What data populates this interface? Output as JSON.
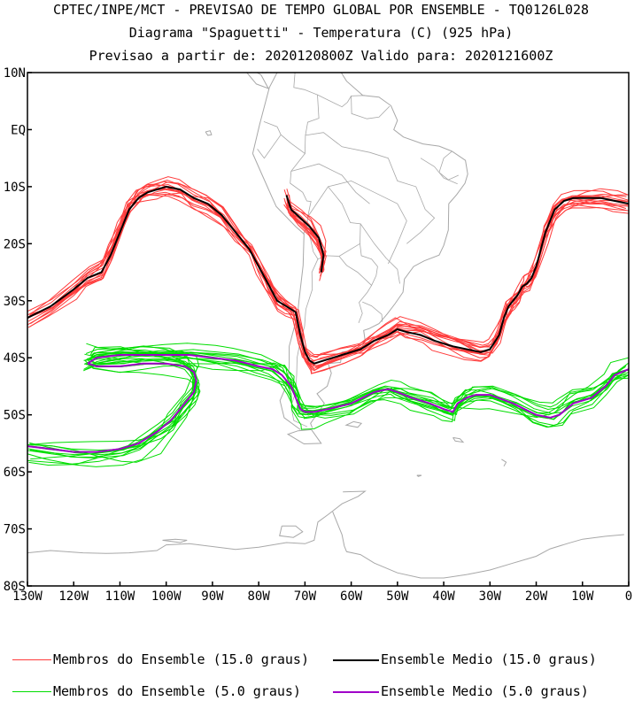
{
  "header": {
    "line1": "CPTEC/INPE/MCT - PREVISAO DE TEMPO GLOBAL POR ENSEMBLE - TQ0126L028",
    "line2": "Diagrama \"Spaguetti\" - Temperatura (C) (925 hPa)",
    "line3": "Previsao a partir de: 2020120800Z  Valido para: 2020121600Z"
  },
  "colors": {
    "members_15": "#ff3b3b",
    "mean_15": "#000000",
    "members_5": "#00dd00",
    "mean_5": "#a000c8",
    "map": "#a8a8a8"
  },
  "legend": {
    "items": [
      {
        "label": "Membros do Ensemble (15.0 graus)",
        "color": "#ff3b3b",
        "width": 1
      },
      {
        "label": "Ensemble Medio (15.0 graus)",
        "color": "#000000",
        "width": 2
      },
      {
        "label": "Membros do Ensemble (5.0 graus)",
        "color": "#00dd00",
        "width": 1
      },
      {
        "label": "Ensemble Medio (5.0 graus)",
        "color": "#a000c8",
        "width": 2
      }
    ]
  },
  "chart_data": {
    "type": "line",
    "xlim": [
      -130,
      0
    ],
    "ylim": [
      -80,
      10
    ],
    "x_ticks": [
      {
        "value": -130,
        "label": "130W"
      },
      {
        "value": -120,
        "label": "120W"
      },
      {
        "value": -110,
        "label": "110W"
      },
      {
        "value": -100,
        "label": "100W"
      },
      {
        "value": -90,
        "label": "90W"
      },
      {
        "value": -80,
        "label": "80W"
      },
      {
        "value": -70,
        "label": "70W"
      },
      {
        "value": -60,
        "label": "60W"
      },
      {
        "value": -50,
        "label": "50W"
      },
      {
        "value": -40,
        "label": "40W"
      },
      {
        "value": -30,
        "label": "30W"
      },
      {
        "value": -20,
        "label": "20W"
      },
      {
        "value": -10,
        "label": "10W"
      },
      {
        "value": 0,
        "label": "0"
      }
    ],
    "y_ticks": [
      {
        "value": 10,
        "label": "10N"
      },
      {
        "value": 0,
        "label": "EQ"
      },
      {
        "value": -10,
        "label": "10S"
      },
      {
        "value": -20,
        "label": "20S"
      },
      {
        "value": -30,
        "label": "30S"
      },
      {
        "value": -40,
        "label": "40S"
      },
      {
        "value": -50,
        "label": "50S"
      },
      {
        "value": -60,
        "label": "60S"
      },
      {
        "value": -70,
        "label": "70S"
      },
      {
        "value": -80,
        "label": "80S"
      }
    ],
    "series": [
      {
        "name": "Ensemble Medio (15.0 graus)",
        "group": "mean_15",
        "x": [
          -130,
          -125,
          -120,
          -117,
          -114,
          -112,
          -110,
          -108,
          -106,
          -104,
          -102,
          -100,
          -97,
          -94,
          -91,
          -88,
          -85,
          -82,
          -80,
          -78,
          -76,
          -74,
          -72,
          -71,
          -70,
          -69,
          -68,
          -66,
          -62,
          -58,
          -55,
          -52,
          -50,
          -48,
          -45,
          -42,
          -38,
          -35,
          -32,
          -30,
          -28,
          -27,
          -26,
          -25,
          -24,
          -23,
          -22,
          -21,
          -20,
          -18,
          -16,
          -14,
          -12,
          -9,
          -6,
          -3,
          0
        ],
        "y": [
          -33,
          -31,
          -28,
          -26,
          -25,
          -22,
          -18,
          -14,
          -12,
          -11,
          -10.5,
          -10,
          -10.5,
          -12,
          -13,
          -15,
          -18,
          -21,
          -24,
          -27,
          -30,
          -31,
          -32,
          -36,
          -39,
          -40.5,
          -41,
          -40.5,
          -39.5,
          -38.5,
          -37,
          -36,
          -35,
          -35.5,
          -36,
          -37,
          -38,
          -38.5,
          -39,
          -38.5,
          -36,
          -33,
          -31,
          -30,
          -29,
          -27.5,
          -27,
          -26,
          -24,
          -18,
          -14,
          -12.5,
          -12,
          -12,
          -12,
          -12.5,
          -13
        ]
      },
      {
        "name": "Ensemble Medio (15.0 graus)",
        "group": "mean_15",
        "x": [
          -74,
          -73,
          -71,
          -69,
          -67,
          -66,
          -66.5
        ],
        "y": [
          -11.5,
          -14,
          -15.5,
          -17,
          -19,
          -22,
          -25
        ]
      },
      {
        "name": "Ensemble Medio (5.0 graus)",
        "group": "mean_5",
        "x": [
          -117,
          -115,
          -110,
          -105,
          -100,
          -95,
          -90,
          -85,
          -80,
          -77,
          -75,
          -73,
          -72,
          -71,
          -70,
          -68,
          -65,
          -60,
          -55,
          -52,
          -50,
          -47,
          -43,
          -40,
          -38,
          -37,
          -35,
          -33,
          -30,
          -25,
          -20,
          -17,
          -15,
          -12,
          -8,
          -5,
          -3,
          0
        ],
        "y": [
          -41,
          -40,
          -39.5,
          -39.5,
          -39.5,
          -39.5,
          -40,
          -40.5,
          -41.5,
          -42,
          -43,
          -45,
          -47,
          -49,
          -49.5,
          -49.5,
          -49,
          -48,
          -46,
          -45.5,
          -46,
          -47,
          -48,
          -49,
          -49.5,
          -48,
          -47,
          -46.5,
          -46.5,
          -48,
          -50,
          -50.5,
          -50,
          -48,
          -47,
          -45,
          -43,
          -42
        ]
      },
      {
        "name": "Ensemble Medio (5.0 graus)",
        "group": "mean_5",
        "x": [
          -130,
          -125,
          -120,
          -115,
          -110,
          -106,
          -102,
          -99,
          -96,
          -94,
          -93.5,
          -94,
          -96,
          -100,
          -105,
          -110,
          -115,
          -117
        ],
        "y": [
          -55.5,
          -56,
          -56.5,
          -56.5,
          -56,
          -55,
          -53,
          -51,
          -48,
          -46,
          -44,
          -42.5,
          -41.5,
          -41,
          -41,
          -41.5,
          -41.5,
          -41
        ]
      }
    ]
  },
  "map": {
    "lines": [
      "-81.3,-4.2 -79.8,0.9 -77.7,7.4 -75.5,10.8 -71.5,12.4 -67.0,10.7 -62.7,10.7 -61.0,8.5 -57.5,6.0 -54.0,5.7 -51.4,4.2 -50.0,1.6 -50.8,0.0 -48.7,-1.3 -44.5,-2.5 -41.0,-2.9 -38.2,-3.8 -35.3,-5.4 -34.8,-7.8 -35.4,-9.4 -37.2,-11.4 -38.9,-13.0 -39.0,-17.6 -40.0,-20.3 -41.0,-22.0 -44.2,-23.0 -46.5,-24.0 -48.5,-26.2 -48.8,-28.5 -50.5,-30.5 -52.2,-32.3 -54.0,-34.0 -56.2,-34.9 -57.3,-35.2 -57.0,-37.0 -57.9,-38.5 -62.0,-39.0 -62.3,-40.8 -65.0,-41.0 -64.3,-42.7 -65.2,-45.0 -67.4,-46.3 -65.8,-48.0 -68.8,-51.5 -68.4,-52.3",
      "-71.0,-52.6 -74.5,-50.5 -75.4,-47.5 -73.8,-44.5 -73.4,-41.5 -73.4,-38.0 -71.6,-32.5 -71.3,-30.0 -70.4,-23.8 -70.2,-18.3 -72.0,-17.0 -76.2,-13.5 -77.1,-11.9 -79.6,-7.3 -81.3,-4.2",
      "-68.6,-52.6 -66.5,-55.0 -70.2,-55.1 -73.7,-53.4 -71.5,-52.8 -68.6,-52.6",
      "-59.5,-51.2 -61.1,-51.8 -58.6,-52.2 -57.8,-51.5 -59.5,-51.2",
      "-92.0,18.5 -87.5,21.5 -84.0,15.8 -83.5,10.9 -80.5,8.0 -77.9,7.2 -79.5,9.6 -82.5,11.0 -86.0,13.2 -87.8,13.2 -90.5,13.9 -92.5,14.7 -95.0,16.0 -96.5,15.6",
      "-84.9,21.9 -81.2,23.1 -77.2,21.7 -74.1,20.2 -77.9,19.9 -80.0,21.8 -84.9,21.9",
      "-61.8,-63.5 -57.0,-63.4 -58.5,-64.3 -62.0,-65.6 -65.0,-67.5 -67.2,-68.8 -68.0,-72.0 -70.0,-72.6 -74.0,-72.4 -80.0,-73.2 -85.0,-73.6 -95.0,-72.6 -100.0,-72.8 -102.0,-73.8 -108.0,-74.2 -113.0,-74.3 -118.0,-74.2 -125.0,-73.8 -130.0,-74.2",
      "-35.0,-78.0 -40.0,-78.6 -45.0,-78.6 -50.0,-77.7 -55.0,-76.0 -58.0,-74.5 -61.0,-74.0 -61.5,-73.0 -62.0,-71.0 -63.0,-69.0 -64.0,-67.0",
      "-1.0,-71.0 -5.0,-71.3 -10.0,-71.8 -13.0,-72.5 -17.0,-73.5 -20.0,-74.8 -25.0,-76.0 -30.0,-77.2 -35.0,-78.0",
      "-38.0,-54.0 -36.5,-54.2 -35.8,-54.8 -37.5,-54.6 -38.0,-54.0",
      "-45.8,-60.6 -44.8,-60.6 -45.5,-60.8 -45.8,-60.6",
      "-27.5,-57.8 -26.5,-58.3 -27.0,-59.0",
      "-91.5,-0.4 -90.5,-0.2 -90.2,-0.9 -91.0,-1.0 -91.5,-0.4",
      "-100.8,-72.0 -98.0,-71.8 -95.5,-72.0 -97.0,-72.4 -100.8,-72.0",
      "-75.0,-69.5 -72.0,-69.5 -70.5,-70.5 -72.5,-71.5 -75.5,-71.2 -75.0,-69.5"
    ],
    "borders": [
      "-78.9,1.4 -76.0,0.5 -75.2,-0.9 -73.0,-2.4 -70.0,-4.2 -69.9,-1.0 -69.4,1.3 -67.0,2.0 -67.3,6.1 -70.1,7.0 -72.4,7.4 -72.0,11.5",
      "-80.3,-3.4 -78.8,-5.0 -75.2,-0.9",
      "-70.0,-4.2 -73.0,-7.3 -73.2,-9.4 -70.5,-11.0 -69.6,-12.5 -68.7,-12.6 -69.4,-15.3 -69.6,-17.3 -70.4,-18.3",
      "-69.4,-15.3 -65.0,-10.0 -62.0,-13.0 -60.2,-16.3 -58.0,-16.5 -58.1,-20.0 -62.6,-22.2 -65.4,-22.1 -67.2,-22.7 -68.2,-21.4 -68.8,-19.2 -69.6,-17.3",
      "-62.6,-22.2 -61.0,-23.8 -58.6,-25.0 -55.6,-27.3 -54.6,-25.6 -54.3,-24.0 -55.6,-22.7 -57.8,-22.1 -58.1,-20.0",
      "-67.2,-22.7 -68.5,-25.0 -68.4,-28.0 -69.8,-31.5 -70.1,-34.5 -71.0,-37.0 -71.7,-40.0 -71.8,-43.0 -72.0,-46.0 -73.0,-48.5 -72.4,-51.0 -69.5,-52.1",
      "-55.6,-27.3 -56.5,-28.5 -58.3,-30.3 -57.6,-32.2 -58.4,-33.9",
      "-53.3,-33.7 -53.4,-32.4 -55.6,-30.9 -57.6,-30.2",
      "-67.3,6.1 -62.0,4.0 -60.8,4.8 -60.0,5.9 -57.1,6.0",
      "-60.0,5.9 -59.9,2.8 -56.6,1.9 -54.0,2.2 -51.7,4.1",
      "-69.9,-1.0 -66.0,-0.5 -62.0,-3.0 -56.0,-4.0 -52.0,-5.0 -50.0,-9.0 -46.0,-10.0 -44.0,-14.0 -42.0,-15.5 -45.0,-18.0 -48.0,-20.0",
      "-65.0,-10.0 -60.0,-9.0 -55.0,-11.0 -50.0,-13.0 -48.0,-16.0 -50.0,-20.0 -52.0,-23.5",
      "-58.0,-16.5 -55.0,-20.0 -52.5,-22.5 -50.0,-24.5 -49.5,-27.0",
      "-73.0,-7.3 -67.0,-6.0 -62.0,-8.0 -59.0,-11.0 -56.0,-13.0",
      "-45.0,-5.0 -42.0,-6.5 -40.0,-8.5 -37.0,-9.5",
      "-38.2,-3.8 -40.0,-5.0 -41.0,-7.5 -39.0,-8.8 -36.8,-8.0"
    ]
  }
}
